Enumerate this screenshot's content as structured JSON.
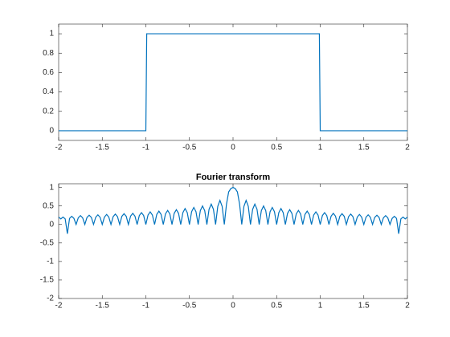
{
  "chart_data": [
    {
      "type": "line",
      "color": "#0072bd",
      "x": [
        -2,
        -1,
        -0.99,
        0.99,
        1,
        2
      ],
      "values": [
        0,
        0,
        1,
        1,
        0,
        0
      ],
      "xlim": [
        -2,
        2
      ],
      "xticks": [
        -2,
        -1.5,
        -1,
        -0.5,
        0,
        0.5,
        1,
        1.5,
        2
      ],
      "ylim": [
        -0.1,
        1.1
      ],
      "yticks": [
        0,
        0.2,
        0.4,
        0.6,
        0.8,
        1
      ]
    },
    {
      "type": "line",
      "title": "Fourier transform",
      "color": "#0072bd",
      "x": [
        -2,
        -1.975,
        -1.95,
        -1.925,
        -1.9,
        -1.875,
        -1.85,
        -1.825,
        -1.8,
        -1.775,
        -1.75,
        -1.725,
        -1.7,
        -1.675,
        -1.65,
        -1.625,
        -1.6,
        -1.575,
        -1.55,
        -1.525,
        -1.5,
        -1.475,
        -1.45,
        -1.425,
        -1.4,
        -1.375,
        -1.35,
        -1.325,
        -1.3,
        -1.275,
        -1.25,
        -1.225,
        -1.2,
        -1.175,
        -1.15,
        -1.125,
        -1.1,
        -1.075,
        -1.05,
        -1.025,
        -1,
        -0.975,
        -0.95,
        -0.925,
        -0.9,
        -0.875,
        -0.85,
        -0.825,
        -0.8,
        -0.775,
        -0.75,
        -0.725,
        -0.7,
        -0.675,
        -0.65,
        -0.625,
        -0.6,
        -0.575,
        -0.55,
        -0.525,
        -0.5,
        -0.475,
        -0.45,
        -0.425,
        -0.4,
        -0.375,
        -0.35,
        -0.325,
        -0.3,
        -0.275,
        -0.25,
        -0.225,
        -0.2,
        -0.175,
        -0.15,
        -0.125,
        -0.1,
        -0.075,
        -0.05,
        -0.025,
        0,
        0.025,
        0.05,
        0.075,
        0.1,
        0.125,
        0.15,
        0.175,
        0.2,
        0.225,
        0.25,
        0.275,
        0.3,
        0.325,
        0.35,
        0.375,
        0.4,
        0.425,
        0.45,
        0.475,
        0.5,
        0.525,
        0.55,
        0.575,
        0.6,
        0.625,
        0.65,
        0.675,
        0.7,
        0.725,
        0.75,
        0.775,
        0.8,
        0.825,
        0.85,
        0.875,
        0.9,
        0.925,
        0.95,
        0.975,
        1,
        1.025,
        1.05,
        1.075,
        1.1,
        1.125,
        1.15,
        1.175,
        1.2,
        1.225,
        1.25,
        1.275,
        1.3,
        1.325,
        1.35,
        1.375,
        1.4,
        1.425,
        1.45,
        1.475,
        1.5,
        1.525,
        1.55,
        1.575,
        1.6,
        1.625,
        1.65,
        1.675,
        1.7,
        1.725,
        1.75,
        1.775,
        1.8,
        1.825,
        1.85,
        1.875,
        1.9,
        1.925,
        1.95,
        1.975,
        2
      ],
      "values": [
        0.2,
        0.15,
        0.2,
        0.15,
        -0.25,
        0.165,
        0.22,
        0.165,
        0,
        0.18,
        0.24,
        0.18,
        0,
        0.19,
        0.25,
        0.19,
        0,
        0.195,
        0.26,
        0.195,
        0,
        0.2,
        0.27,
        0.2,
        0,
        0.21,
        0.28,
        0.21,
        0,
        0.22,
        0.29,
        0.22,
        0,
        0.225,
        0.3,
        0.225,
        0,
        0.24,
        0.32,
        0.24,
        0,
        0.255,
        0.34,
        0.255,
        0,
        0.27,
        0.36,
        0.27,
        0,
        0.285,
        0.38,
        0.285,
        0,
        0.3,
        0.4,
        0.3,
        0,
        0.32,
        0.43,
        0.32,
        0,
        0.345,
        0.46,
        0.345,
        0,
        0.375,
        0.5,
        0.375,
        0,
        0.41,
        0.55,
        0.41,
        0,
        0.49,
        0.65,
        0.49,
        0,
        0.55,
        0.88,
        0.97,
        1,
        0.97,
        0.88,
        0.55,
        0,
        0.49,
        0.65,
        0.49,
        0,
        0.41,
        0.55,
        0.41,
        0,
        0.375,
        0.5,
        0.375,
        0,
        0.345,
        0.46,
        0.345,
        0,
        0.32,
        0.43,
        0.32,
        0,
        0.3,
        0.4,
        0.3,
        0,
        0.285,
        0.38,
        0.285,
        0,
        0.27,
        0.36,
        0.27,
        0,
        0.255,
        0.34,
        0.255,
        0,
        0.24,
        0.32,
        0.24,
        0,
        0.225,
        0.3,
        0.225,
        0,
        0.22,
        0.29,
        0.22,
        0,
        0.21,
        0.28,
        0.21,
        0,
        0.2,
        0.27,
        0.2,
        0,
        0.195,
        0.26,
        0.195,
        0,
        0.19,
        0.25,
        0.19,
        0,
        0.18,
        0.24,
        0.18,
        0,
        0.165,
        0.22,
        0.165,
        -0.25,
        0.15,
        0.2,
        0.15,
        0.2
      ],
      "xlim": [
        -2,
        2
      ],
      "xticks": [
        -2,
        -1.5,
        -1,
        -0.5,
        0,
        0.5,
        1,
        1.5,
        2
      ],
      "ylim": [
        -2,
        1.1
      ],
      "yticks": [
        -2,
        -1.5,
        -1,
        -0.5,
        0,
        0.5,
        1
      ]
    }
  ]
}
